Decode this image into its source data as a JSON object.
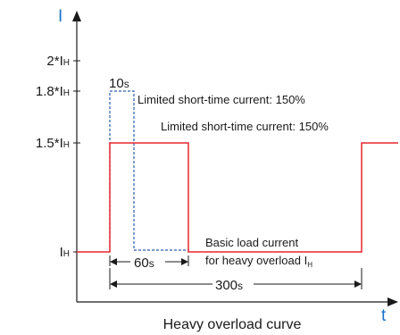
{
  "axes": {
    "y_label": "I",
    "x_label": "t"
  },
  "y_ticks": {
    "level_2": {
      "main": "2*I",
      "sub": "H"
    },
    "level_1_8": {
      "main": "1.8*I",
      "sub": "H"
    },
    "level_1_5": {
      "main": "1.5*I",
      "sub": "H"
    },
    "level_base": {
      "main": "I",
      "sub": "H"
    }
  },
  "durations": {
    "short_pulse": {
      "value": "10",
      "unit": "s"
    },
    "overload_interval": {
      "value": "60",
      "unit": "s"
    },
    "cycle_period": {
      "value": "300",
      "unit": "s"
    }
  },
  "annotations": {
    "short_time_limit_1": "Limited short-time current: 150%",
    "short_time_limit_2": "Limited short-time current: 150%",
    "basic_load_line1": "Basic load current",
    "basic_load_line2_main": "for heavy overload I",
    "basic_load_line2_sub": "H"
  },
  "title": "Heavy overload curve",
  "colors": {
    "axis": "#1a1a1a",
    "axis_label": "#1a73c8",
    "curve": "#e8262d",
    "short_time_curve": "#2a5caa"
  }
}
